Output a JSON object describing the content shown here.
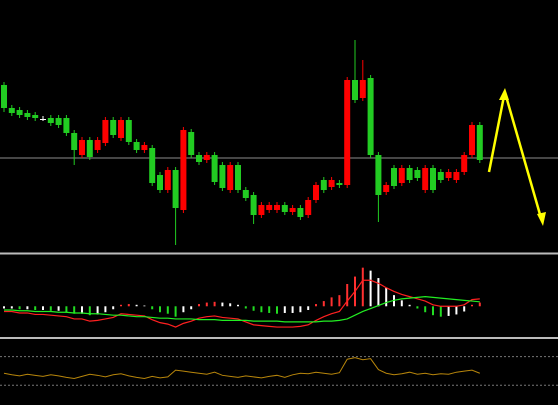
{
  "chart_data": [
    {
      "type": "candlestick",
      "open": [
        167,
        144,
        142,
        139,
        137,
        133,
        134,
        134,
        134,
        119,
        97,
        112,
        102,
        109,
        132,
        114,
        132,
        110,
        102,
        104,
        77,
        62,
        82,
        42,
        120,
        97,
        92,
        97,
        87,
        62,
        87,
        62,
        57,
        37,
        42,
        42,
        47,
        40,
        44,
        37,
        52,
        72,
        65,
        69,
        67,
        172,
        154,
        174,
        97,
        60,
        84,
        69,
        84,
        82,
        62,
        84,
        80,
        74,
        72,
        80,
        97,
        127
      ],
      "high": [
        170,
        147,
        145,
        142,
        140,
        136,
        137,
        137,
        137,
        122,
        115,
        115,
        115,
        135,
        135,
        135,
        135,
        113,
        110,
        107,
        80,
        85,
        85,
        125,
        123,
        100,
        100,
        100,
        90,
        90,
        90,
        65,
        60,
        50,
        50,
        50,
        50,
        47,
        47,
        55,
        70,
        75,
        75,
        72,
        175,
        212,
        192,
        177,
        100,
        70,
        87,
        87,
        87,
        85,
        87,
        87,
        83,
        83,
        83,
        100,
        130,
        130
      ],
      "low": [
        140,
        136,
        134,
        132,
        131,
        131,
        126,
        124,
        116,
        87,
        94,
        92,
        99,
        106,
        114,
        111,
        107,
        99,
        99,
        66,
        59,
        59,
        7,
        39,
        94,
        87,
        89,
        67,
        61,
        59,
        59,
        51,
        28,
        34,
        39,
        39,
        37,
        37,
        32,
        34,
        49,
        59,
        62,
        64,
        64,
        149,
        151,
        94,
        30,
        57,
        63,
        66,
        69,
        71,
        59,
        59,
        69,
        71,
        69,
        77,
        94,
        89
      ],
      "close": [
        144,
        139,
        137,
        135,
        134,
        133,
        129,
        127,
        119,
        102,
        112,
        95,
        112,
        132,
        117,
        132,
        110,
        102,
        107,
        69,
        62,
        82,
        44,
        122,
        97,
        90,
        97,
        70,
        64,
        87,
        62,
        54,
        37,
        47,
        47,
        47,
        40,
        44,
        35,
        52,
        67,
        62,
        72,
        67,
        172,
        152,
        172,
        97,
        57,
        67,
        66,
        84,
        72,
        74,
        84,
        62,
        72,
        80,
        80,
        97,
        127,
        92
      ],
      "up_color": "#ff0000",
      "down_color": "#22cc22",
      "flat_color": "#ffffff",
      "ylim": [
        0,
        252
      ],
      "reference_line": 94,
      "reference_color": "#8c8c8c"
    },
    {
      "type": "macd",
      "histogram": [
        -3,
        -3,
        -4,
        -4,
        -5,
        -5,
        -6,
        -6,
        -8,
        -10,
        -10,
        -12,
        -11,
        -8,
        -4,
        2,
        3,
        2,
        1,
        -4,
        -8,
        -10,
        -14,
        -8,
        -4,
        3,
        5,
        6,
        5,
        4,
        2,
        -3,
        -6,
        -8,
        -9,
        -10,
        -9,
        -9,
        -8,
        -5,
        3,
        7,
        12,
        15,
        30,
        40,
        52,
        48,
        38,
        25,
        15,
        8,
        2,
        -3,
        -8,
        -12,
        -14,
        -13,
        -11,
        -7,
        2,
        5
      ],
      "histogram_colors": [
        "#ff3030",
        "#ffffff",
        "#22dd22"
      ],
      "series": [
        {
          "color": "#ff2020",
          "values": [
            -7,
            -7,
            -9,
            -9,
            -11,
            -11,
            -12,
            -13,
            -14,
            -17,
            -17,
            -20,
            -19,
            -17,
            -15,
            -10,
            -11,
            -12,
            -13,
            -18,
            -22,
            -24,
            -28,
            -23,
            -20,
            -16,
            -14,
            -13,
            -15,
            -16,
            -17,
            -21,
            -25,
            -26,
            -27,
            -28,
            -28,
            -28,
            -27,
            -25,
            -19,
            -14,
            -10,
            -7,
            7,
            20,
            35,
            35,
            31,
            25,
            20,
            16,
            13,
            10,
            7,
            2,
            0,
            0,
            0,
            2,
            9,
            10
          ]
        },
        {
          "color": "#22ee22",
          "values": [
            -5,
            -5,
            -6,
            -6,
            -7,
            -7,
            -7,
            -8,
            -8,
            -9,
            -9,
            -10,
            -10,
            -11,
            -12,
            -12,
            -13,
            -14,
            -14,
            -15,
            -16,
            -16,
            -17,
            -17,
            -17,
            -18,
            -18,
            -18,
            -19,
            -19,
            -19,
            -19,
            -20,
            -20,
            -20,
            -20,
            -21,
            -21,
            -21,
            -21,
            -21,
            -20,
            -20,
            -19,
            -17,
            -12,
            -7,
            -3,
            1,
            5,
            8,
            10,
            11,
            12,
            13,
            12,
            11,
            10,
            9,
            8,
            7,
            6
          ]
        }
      ],
      "ylim": [
        -40,
        65
      ]
    },
    {
      "type": "line",
      "values": [
        38,
        35,
        33,
        36,
        34,
        32,
        35,
        33,
        30,
        28,
        32,
        36,
        34,
        31,
        35,
        37,
        33,
        30,
        28,
        32,
        29,
        31,
        44,
        42,
        40,
        38,
        36,
        40,
        34,
        32,
        30,
        33,
        31,
        29,
        32,
        34,
        30,
        35,
        38,
        37,
        40,
        38,
        36,
        39,
        65,
        68,
        64,
        66,
        45,
        38,
        35,
        37,
        40,
        36,
        38,
        35,
        37,
        36,
        40,
        42,
        44,
        38
      ],
      "color": "#b8860b",
      "levels": [
        70,
        15
      ],
      "level_color": "#777777",
      "ylim": [
        0,
        100
      ]
    }
  ]
}
